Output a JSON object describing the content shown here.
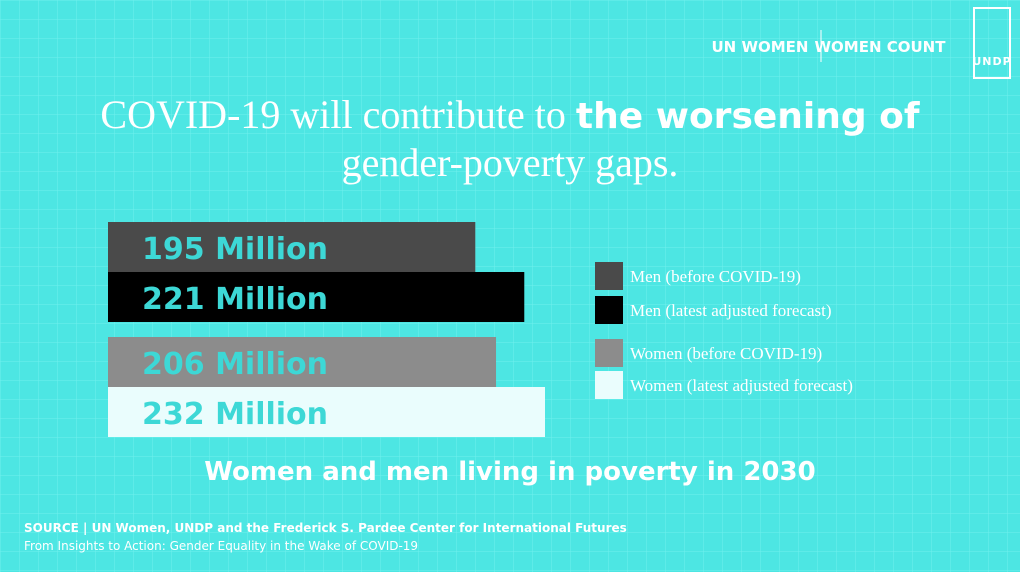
{
  "logos": [
    "UN WOMEN",
    "WOMEN COUNT",
    "UNDP"
  ],
  "chart_data": {
    "type": "bar",
    "orientation": "horizontal",
    "title": {
      "plain": "COVID-19 will contribute to",
      "emphasis": "the worsening of",
      "rest": "gender-poverty gaps."
    },
    "categories": [
      "Men (before COVID-19)",
      "Men (latest adjusted forecast)",
      "Women (before COVID-19)",
      "Women (latest adjusted forecast)"
    ],
    "values": [
      195,
      221,
      206,
      232
    ],
    "value_labels": [
      "195 Million",
      "221 Million",
      "206 Million",
      "232 Million"
    ],
    "colors": [
      "#4a4a4a",
      "#000000",
      "#8c8c8c",
      "#eafdfd"
    ],
    "subtitle": "Women and men living in poverty in 2030",
    "source": "SOURCE | UN Women, UNDP and the Frederick S. Pardee Center for International Futures",
    "note": "From Insights to Action: Gender Equality in the Wake of COVID-19"
  }
}
